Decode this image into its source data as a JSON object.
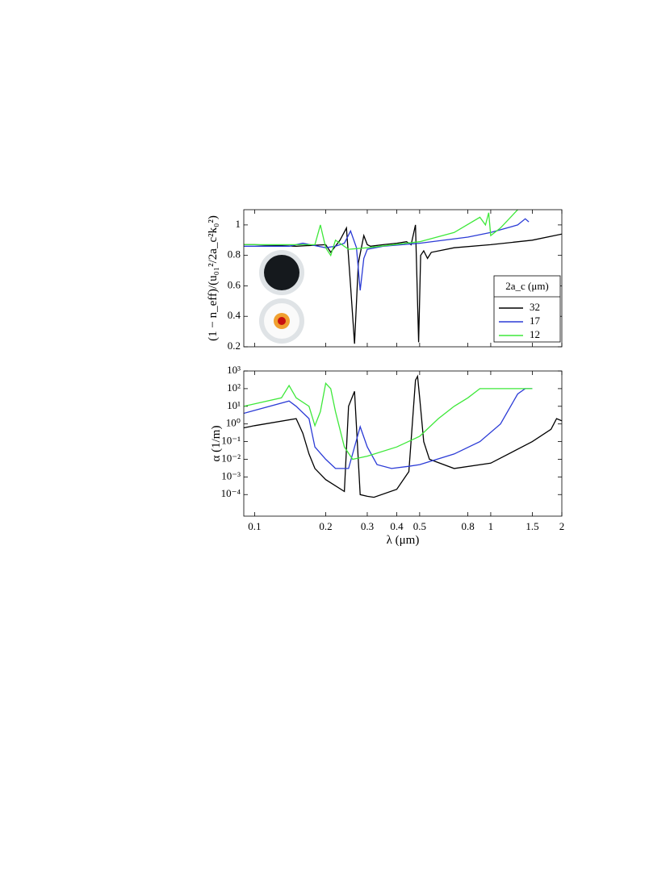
{
  "chart_data": [
    {
      "type": "line",
      "y_label": "(1 − n_eff)/(u₀₁²/2a_c²k₀²)",
      "xscale": "log",
      "xlim": [
        0.09,
        2
      ],
      "ylim": [
        0.2,
        1.1
      ],
      "yticks": [
        0.2,
        0.4,
        0.6,
        0.8,
        1
      ],
      "legend_title": "2a_c (μm)",
      "legend": "lower right",
      "series": [
        {
          "name": "32",
          "color": "#000000",
          "x": [
            0.09,
            0.1,
            0.15,
            0.2,
            0.21,
            0.23,
            0.245,
            0.255,
            0.265,
            0.275,
            0.29,
            0.3,
            0.31,
            0.35,
            0.4,
            0.44,
            0.46,
            0.48,
            0.495,
            0.505,
            0.52,
            0.54,
            0.56,
            0.7,
            1,
            1.5,
            2
          ],
          "values": [
            0.87,
            0.87,
            0.86,
            0.87,
            0.82,
            0.9,
            0.98,
            0.6,
            0.22,
            0.75,
            0.93,
            0.87,
            0.86,
            0.87,
            0.88,
            0.89,
            0.87,
            1.0,
            0.23,
            0.8,
            0.83,
            0.78,
            0.82,
            0.85,
            0.87,
            0.9,
            0.94
          ]
        },
        {
          "name": "17",
          "color": "#2b3bd6",
          "x": [
            0.09,
            0.14,
            0.16,
            0.2,
            0.22,
            0.24,
            0.255,
            0.27,
            0.28,
            0.29,
            0.3,
            0.35,
            0.5,
            0.8,
            1,
            1.3,
            1.4,
            1.45
          ],
          "values": [
            0.86,
            0.86,
            0.88,
            0.85,
            0.86,
            0.88,
            0.96,
            0.85,
            0.57,
            0.78,
            0.84,
            0.86,
            0.88,
            0.92,
            0.95,
            1.0,
            1.04,
            1.02
          ]
        },
        {
          "name": "12",
          "color": "#3ee83a",
          "x": [
            0.09,
            0.18,
            0.19,
            0.2,
            0.21,
            0.22,
            0.25,
            0.3,
            0.5,
            0.7,
            0.9,
            0.95,
            0.98,
            1.0,
            1.1,
            1.3
          ],
          "values": [
            0.87,
            0.87,
            1.0,
            0.85,
            0.8,
            0.9,
            0.84,
            0.85,
            0.89,
            0.95,
            1.05,
            1.0,
            1.08,
            0.93,
            0.98,
            1.1
          ]
        }
      ]
    },
    {
      "type": "line",
      "x_label": "λ (μm)",
      "y_label": "α (1/m)",
      "xscale": "log",
      "xlim": [
        0.09,
        2
      ],
      "xticks": [
        0.1,
        0.2,
        0.3,
        0.4,
        0.5,
        0.8,
        1,
        1.5,
        2
      ],
      "yscale": "log",
      "ylim": [
        6e-06,
        1000
      ],
      "yticks": [
        {
          "value": 0.0001,
          "label": "10⁻⁴"
        },
        {
          "value": 0.001,
          "label": "10⁻³"
        },
        {
          "value": 0.01,
          "label": "10⁻²"
        },
        {
          "value": 0.1,
          "label": "10⁻¹"
        },
        {
          "value": 1,
          "label": "10⁰"
        },
        {
          "value": 10,
          "label": "10¹"
        },
        {
          "value": 100,
          "label": "10²"
        },
        {
          "value": 1000,
          "label": "10³"
        }
      ],
      "series": [
        {
          "name": "32",
          "color": "#000000",
          "x": [
            0.09,
            0.1,
            0.15,
            0.16,
            0.17,
            0.18,
            0.2,
            0.24,
            0.25,
            0.265,
            0.28,
            0.3,
            0.32,
            0.4,
            0.45,
            0.48,
            0.49,
            0.5,
            0.52,
            0.55,
            0.7,
            1,
            1.5,
            1.8,
            1.9,
            2
          ],
          "values": [
            0.6,
            0.8,
            2,
            0.3,
            0.02,
            0.003,
            0.0007,
            0.00015,
            10,
            70,
            0.0001,
            8e-05,
            7e-05,
            0.0002,
            0.002,
            300,
            500,
            30,
            0.1,
            0.01,
            0.003,
            0.006,
            0.1,
            0.5,
            2,
            1.5
          ]
        },
        {
          "name": "17",
          "color": "#2b3bd6",
          "x": [
            0.09,
            0.14,
            0.15,
            0.17,
            0.18,
            0.2,
            0.22,
            0.25,
            0.28,
            0.3,
            0.33,
            0.38,
            0.45,
            0.5,
            0.7,
            0.9,
            1.1,
            1.3,
            1.4,
            1.5
          ],
          "values": [
            4,
            20,
            10,
            2,
            0.05,
            0.01,
            0.003,
            0.003,
            0.7,
            0.05,
            0.005,
            0.003,
            0.004,
            0.005,
            0.02,
            0.1,
            1,
            50,
            100,
            100
          ]
        },
        {
          "name": "12",
          "color": "#3ee83a",
          "x": [
            0.09,
            0.13,
            0.14,
            0.15,
            0.17,
            0.18,
            0.19,
            0.2,
            0.21,
            0.22,
            0.24,
            0.26,
            0.3,
            0.4,
            0.5,
            0.6,
            0.7,
            0.8,
            0.9,
            1.5
          ],
          "values": [
            10,
            30,
            150,
            30,
            10,
            0.8,
            5,
            200,
            100,
            5,
            0.05,
            0.01,
            0.015,
            0.05,
            0.2,
            2,
            10,
            30,
            100,
            100
          ]
        }
      ]
    }
  ]
}
